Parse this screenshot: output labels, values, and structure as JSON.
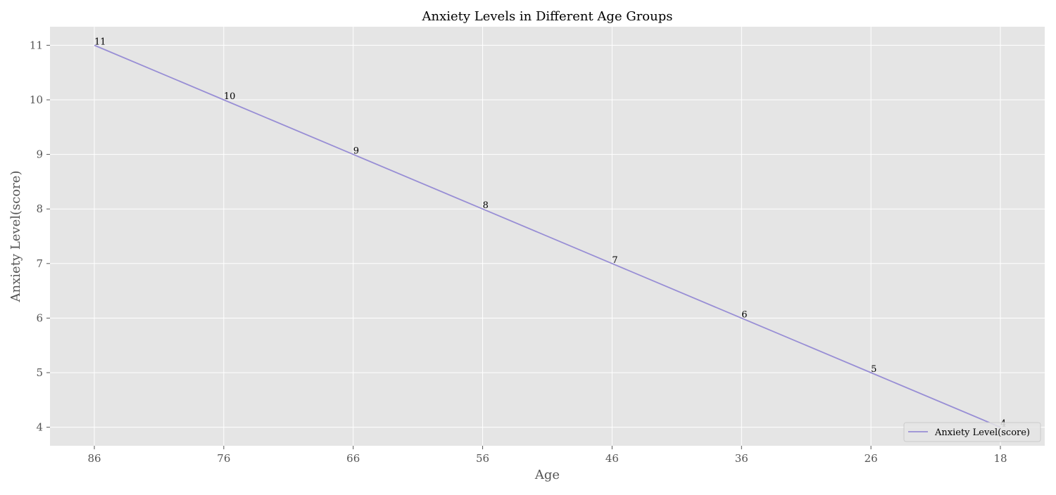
{
  "chart_data": {
    "type": "line",
    "title": "Anxiety Levels in Different Age Groups",
    "xlabel": "Age",
    "ylabel": "Anxiety Level(score)",
    "x": [
      "86",
      "76",
      "66",
      "56",
      "46",
      "36",
      "26",
      "18"
    ],
    "x_values": [
      86,
      76,
      66,
      56,
      46,
      36,
      26,
      18
    ],
    "x_reversed": true,
    "ylim": [
      3.66,
      11.34
    ],
    "yticks": [
      4,
      5,
      6,
      7,
      8,
      9,
      10,
      11
    ],
    "grid": true,
    "legend_position": "lower-right",
    "series": [
      {
        "name": "Anxiety Level(score)",
        "values": [
          11,
          10,
          9,
          8,
          7,
          6,
          5,
          4
        ],
        "color": "#988ED5"
      }
    ],
    "background_color": "#E5E5E5",
    "grid_color": "#FFFFFF"
  }
}
